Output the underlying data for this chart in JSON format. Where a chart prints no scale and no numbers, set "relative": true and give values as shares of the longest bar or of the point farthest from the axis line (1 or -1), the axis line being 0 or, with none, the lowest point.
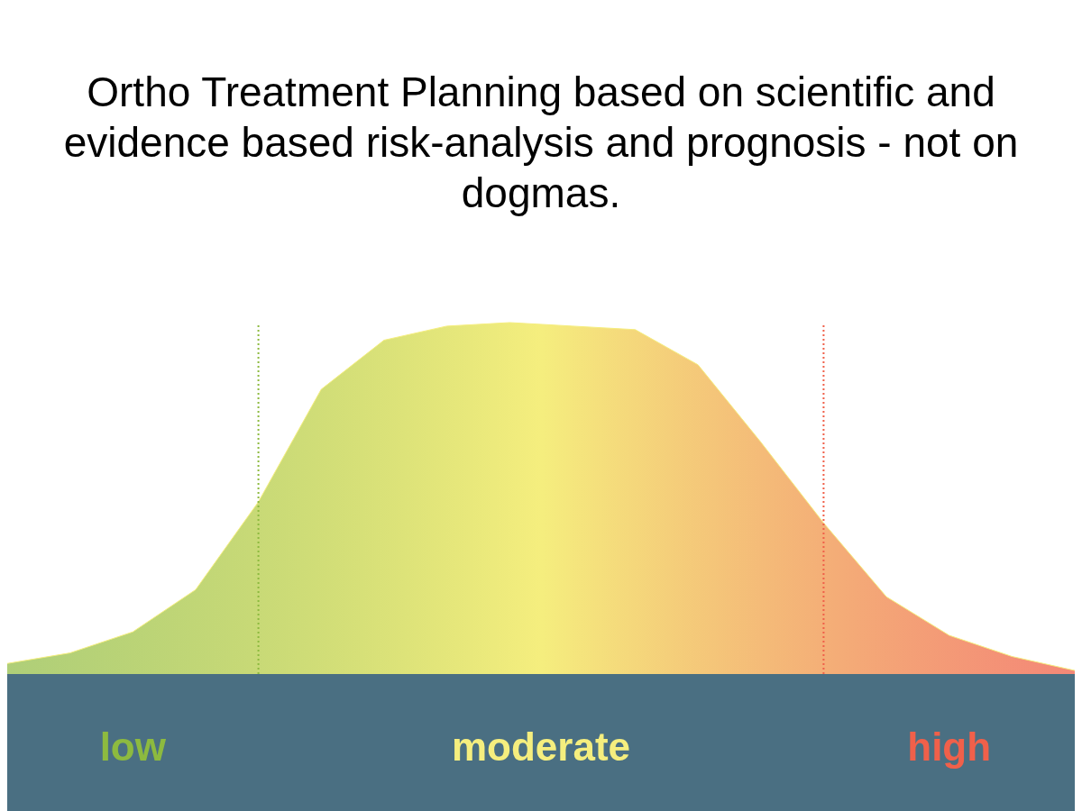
{
  "chart_data": {
    "type": "area",
    "title": "Ortho Treatment Planning based on scientific and evidence based risk-analysis and prognosis - not on dogmas.",
    "relative": true,
    "tick_labels": false,
    "grid": false,
    "legend": false,
    "categories": [
      null,
      null,
      null,
      null,
      null,
      null,
      null,
      null,
      null,
      null,
      null,
      null,
      null,
      null,
      null,
      null,
      null,
      null
    ],
    "series": [
      {
        "color": "#f5ee7e",
        "values": [
          0.03,
          0.06,
          0.12,
          0.24,
          0.49,
          0.81,
          0.95,
          0.99,
          1,
          0.99,
          0.98,
          0.88,
          0.66,
          0.43,
          0.22,
          0.11,
          0.05,
          0.01
        ]
      }
    ],
    "annotations": [
      "low",
      "moderate",
      "high"
    ]
  }
}
